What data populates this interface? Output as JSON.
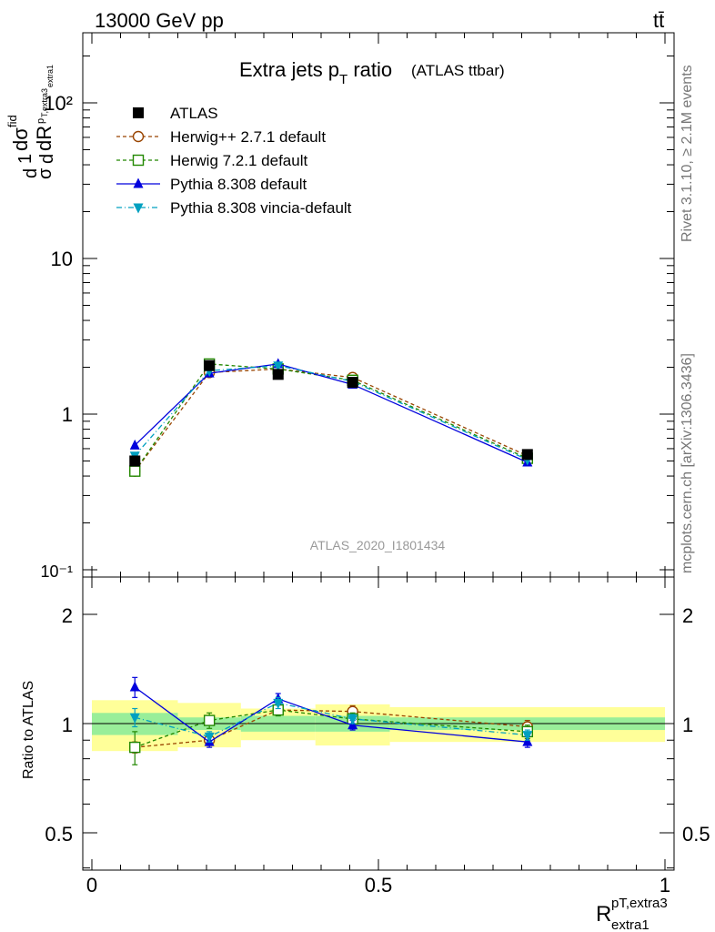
{
  "header": {
    "energy_label": "13000 GeV pp",
    "process_label": "tt̄"
  },
  "side_labels": {
    "rivet": "Rivet 3.1.10, ≥ 2.1M events",
    "mcplots": "mcplots.cern.ch [arXiv:1306.3436]"
  },
  "upper_plot": {
    "title_main": "Extra jets p",
    "title_sub": "T",
    "title_ratio": " ratio",
    "title_paren": "(ATLAS ttbar)",
    "ylabel": "1/σ dσfid/dR (pT,extra3 / pT,extra1)",
    "watermark": "ATLAS_2020_I1801434",
    "ytick_labels": [
      "10⁻¹",
      "1",
      "10",
      "10²"
    ]
  },
  "lower_plot": {
    "ylabel": "Ratio to ATLAS",
    "ytick_labels": [
      "0.5",
      "1",
      "2"
    ],
    "xtick_labels": [
      "0",
      "0.5",
      "1"
    ],
    "xlabel_main": "R",
    "xlabel_sup": "pT,extra3",
    "xlabel_sub": "extra1"
  },
  "legend": {
    "entries": [
      {
        "label": "ATLAS"
      },
      {
        "label": "Herwig++ 2.7.1 default"
      },
      {
        "label": "Herwig 7.2.1 default"
      },
      {
        "label": "Pythia 8.308 default"
      },
      {
        "label": "Pythia 8.308 vincia-default"
      }
    ]
  },
  "chart_data": {
    "type": "scatter",
    "x_scale": "linear",
    "y_scale_main": "log",
    "xlim": [
      0,
      1
    ],
    "ylim_main": [
      0.1,
      300
    ],
    "ylim_ratio": [
      0.38,
      2.5
    ],
    "bins": [
      [
        0,
        0.15
      ],
      [
        0.15,
        0.26
      ],
      [
        0.26,
        0.39
      ],
      [
        0.39,
        0.52
      ],
      [
        0.52,
        1.0
      ]
    ],
    "x": [
      0.075,
      0.205,
      0.325,
      0.455,
      0.76
    ],
    "data": {
      "name": "ATLAS",
      "values": [
        0.5,
        2.05,
        1.8,
        1.6,
        0.55
      ],
      "band_stat": [
        0.07,
        0.04,
        0.05,
        0.05,
        0.04
      ],
      "band_total": [
        0.16,
        0.14,
        0.1,
        0.13,
        0.11
      ]
    },
    "series": [
      {
        "name": "Herwig++ 2.7.1 default",
        "color": "#994400",
        "marker": "open-circle",
        "dash": "4,3",
        "values": [
          0.43,
          1.85,
          1.95,
          1.72,
          0.54
        ],
        "ratio": [
          0.86,
          0.9,
          1.09,
          1.08,
          0.98
        ],
        "ratio_err": [
          0.03,
          0.03,
          0.03,
          0.04,
          0.04
        ]
      },
      {
        "name": "Herwig 7.2.1 default",
        "color": "#228800",
        "marker": "open-square",
        "dash": "4,3",
        "values": [
          0.43,
          2.1,
          1.95,
          1.65,
          0.52
        ],
        "ratio": [
          0.86,
          1.02,
          1.09,
          1.03,
          0.95
        ],
        "ratio_err": [
          0.09,
          0.05,
          0.04,
          0.04,
          0.04
        ]
      },
      {
        "name": "Pythia 8.308 default",
        "color": "#0000dd",
        "marker": "triangle-up",
        "dash": "",
        "values": [
          0.63,
          1.83,
          2.1,
          1.55,
          0.49
        ],
        "ratio": [
          1.26,
          0.89,
          1.17,
          0.99,
          0.89
        ],
        "ratio_err": [
          0.08,
          0.03,
          0.04,
          0.03,
          0.03
        ]
      },
      {
        "name": "Pythia 8.308 vincia-default",
        "color": "#00a0c0",
        "marker": "triangle-down",
        "dash": "6,3,1,3",
        "values": [
          0.54,
          1.9,
          2.05,
          1.62,
          0.51
        ],
        "ratio": [
          1.04,
          0.92,
          1.14,
          1.03,
          0.93
        ],
        "ratio_err": [
          0.06,
          0.03,
          0.04,
          0.03,
          0.03
        ]
      }
    ]
  }
}
